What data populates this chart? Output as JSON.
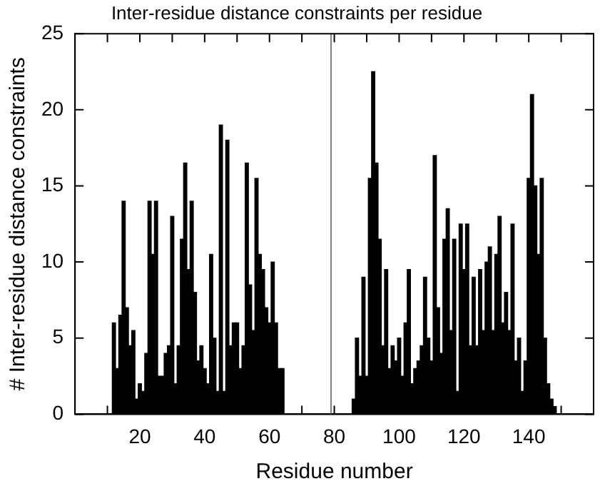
{
  "chart_data": {
    "type": "bar",
    "title": "Inter-residue distance constraints per residue",
    "xlabel": "Residue number",
    "ylabel": "# Inter-residue distance constraints",
    "x": [
      12,
      13,
      14,
      15,
      16,
      17,
      18,
      19,
      20,
      21,
      22,
      23,
      24,
      25,
      26,
      27,
      28,
      29,
      30,
      31,
      32,
      33,
      34,
      35,
      36,
      37,
      38,
      39,
      40,
      41,
      42,
      43,
      44,
      45,
      46,
      47,
      48,
      49,
      50,
      51,
      52,
      53,
      54,
      55,
      56,
      57,
      58,
      59,
      60,
      61,
      62,
      63,
      64,
      86,
      87,
      88,
      89,
      90,
      91,
      92,
      93,
      94,
      95,
      96,
      97,
      98,
      99,
      100,
      101,
      102,
      103,
      104,
      105,
      106,
      107,
      108,
      109,
      110,
      111,
      112,
      113,
      114,
      115,
      116,
      117,
      118,
      119,
      120,
      121,
      122,
      123,
      124,
      125,
      126,
      127,
      128,
      129,
      130,
      131,
      132,
      133,
      134,
      135,
      136,
      137,
      138,
      139,
      140,
      141,
      142,
      143,
      144,
      145,
      146,
      147,
      148
    ],
    "series": [
      {
        "color": "#000000",
        "values": [
          6,
          3,
          6.5,
          14,
          7,
          4.5,
          5.5,
          1,
          2,
          1.5,
          4,
          14,
          10.5,
          14,
          2.5,
          2.5,
          4,
          4.5,
          13,
          2,
          4.5,
          11.5,
          16.5,
          9.5,
          14,
          8,
          3.5,
          4.5,
          3,
          2,
          10.5,
          5,
          1.5,
          19,
          1.5,
          18,
          4.5,
          6,
          6,
          3,
          4.5,
          16.5,
          8.5,
          5.5,
          15.5,
          10.5,
          9.5,
          7,
          6,
          10,
          6,
          3,
          3,
          1,
          5,
          2.5,
          9,
          2.5,
          15.5,
          22.5,
          16.5,
          11.5,
          4.5,
          9.5,
          3,
          4.5,
          3.5,
          5,
          2.5,
          6,
          9.5,
          2,
          3,
          3.5,
          4.5,
          9,
          5,
          3.5,
          17,
          7,
          4,
          11.5,
          13.5,
          5.5,
          11.5,
          1.5,
          12.5,
          9.5,
          12.5,
          4.5,
          9,
          4.5,
          9.5,
          5.5,
          10,
          11,
          5.5,
          10.5,
          13,
          6,
          8,
          5.5,
          12.5,
          3.5,
          5,
          1.5,
          3.5,
          15.5,
          21,
          15,
          10.5,
          15.5,
          5,
          2,
          1,
          0.5
        ]
      }
    ],
    "xlim": [
      0,
      160
    ],
    "xticks": [
      {
        "value": 10,
        "label": null
      },
      20,
      {
        "value": 30,
        "label": null
      },
      40,
      {
        "value": 50,
        "label": null
      },
      60,
      {
        "value": 70,
        "label": null
      },
      80,
      {
        "value": 90,
        "label": null
      },
      100,
      {
        "value": 110,
        "label": null
      },
      120,
      {
        "value": 130,
        "label": null
      },
      140,
      {
        "value": 150,
        "label": null
      }
    ],
    "ylim": [
      0,
      25
    ],
    "yticks": [
      0,
      5,
      10,
      15,
      20,
      25
    ],
    "ref_lines": [
      {
        "axis": "x",
        "value": 79,
        "color": "#808080"
      }
    ]
  }
}
